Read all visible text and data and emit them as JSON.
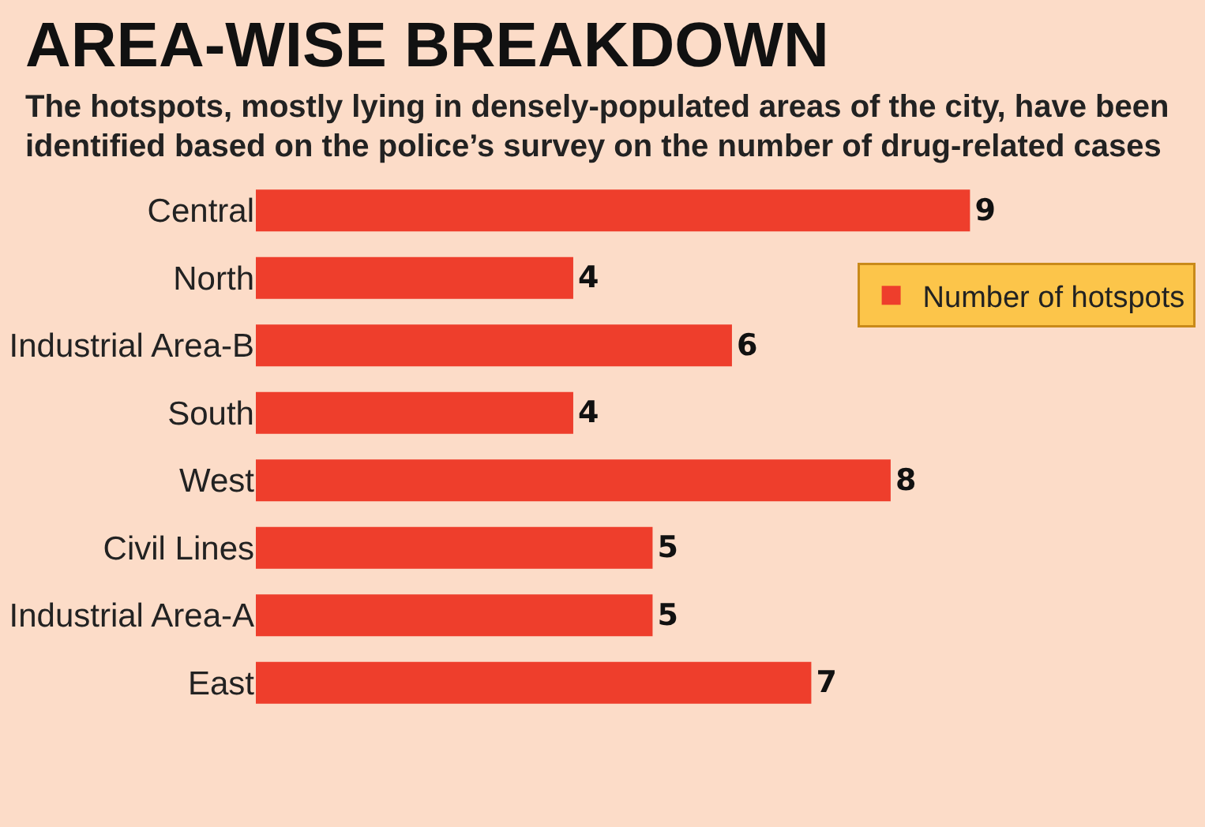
{
  "chart_data": {
    "type": "bar",
    "orientation": "horizontal",
    "title": "AREA-WISE BREAKDOWN",
    "subtitle": "The hotspots, mostly lying in densely-populated areas of the city, have been identified based on the police’s survey on the number of drug-related cases",
    "categories": [
      "Central",
      "North",
      "Industrial Area-B",
      "South",
      "West",
      "Civil Lines",
      "Industrial Area-A",
      "East"
    ],
    "series": [
      {
        "name": "Number of hotspots",
        "color": "#ee3e2c",
        "values": [
          9,
          4,
          6,
          4,
          8,
          5,
          5,
          7
        ]
      }
    ],
    "data_labels": true,
    "legend": "right",
    "tick_labels": "y",
    "grid": false
  }
}
